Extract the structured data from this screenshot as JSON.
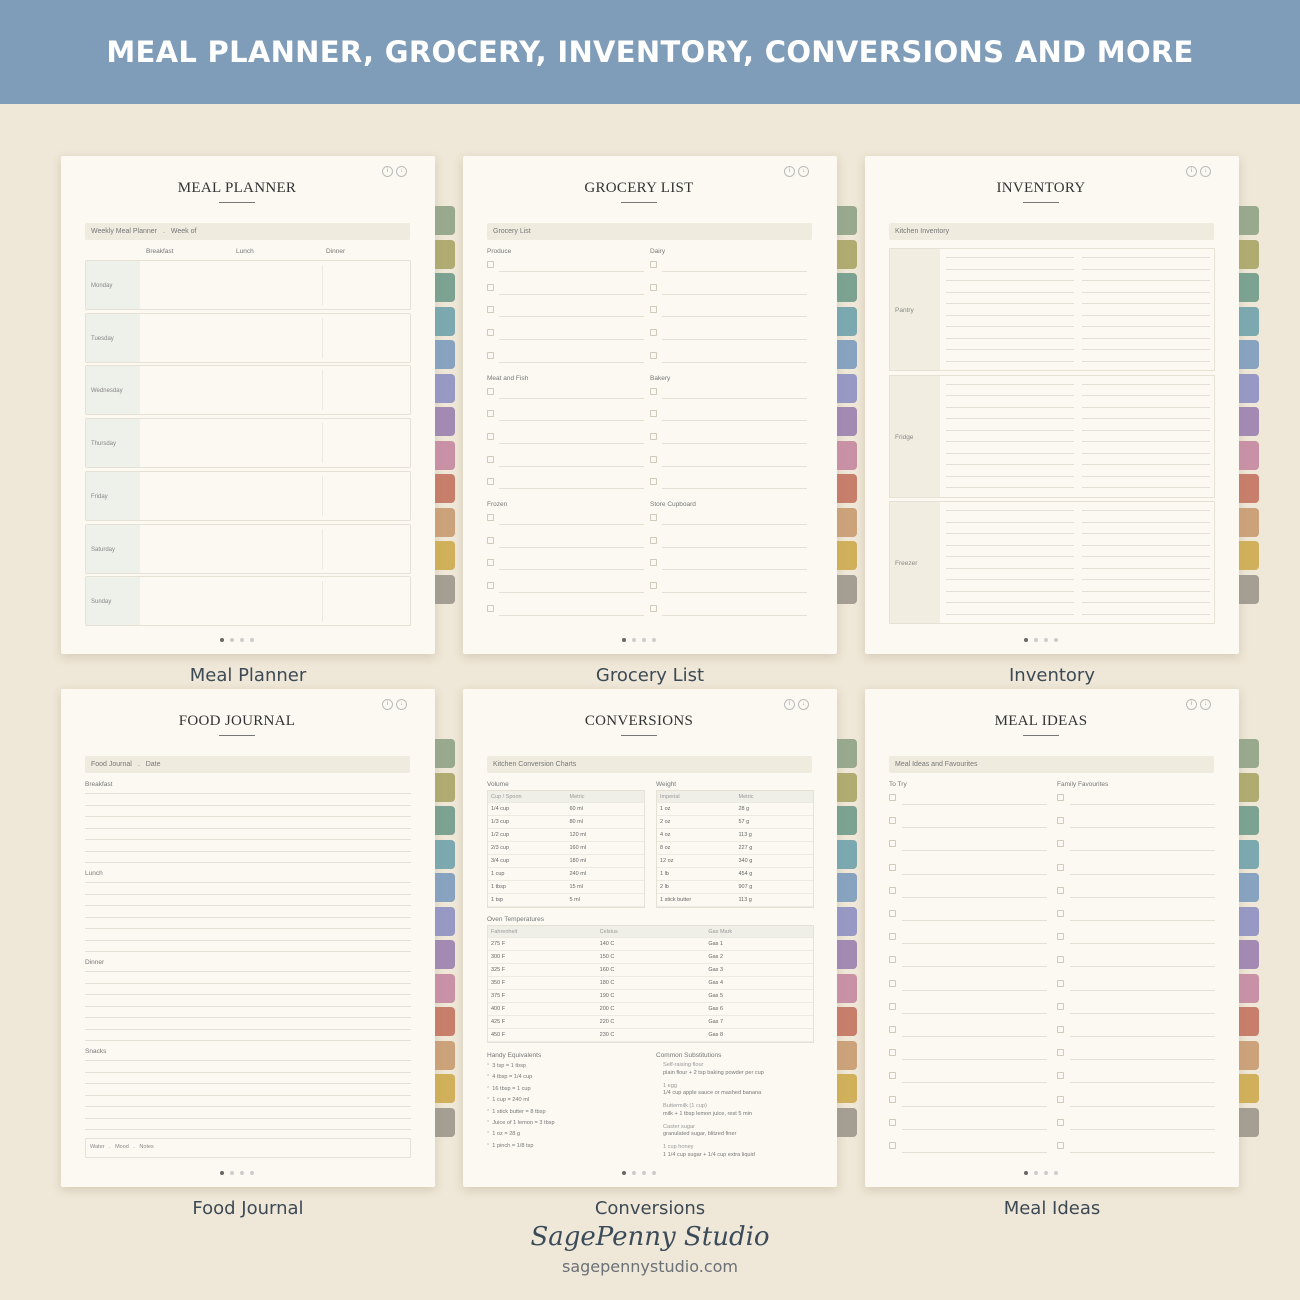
{
  "banner": {
    "title": "MEAL PLANNER, GROCERY, INVENTORY, CONVERSIONS AND MORE"
  },
  "tab_colors": [
    "#8ea285",
    "#a7a466",
    "#6f9a8a",
    "#6fa1ab",
    "#7b9bbd",
    "#8d90c2",
    "#9a7fae",
    "#c487a0",
    "#c2725e",
    "#c79a70",
    "#ccaa4c",
    "#9b968c"
  ],
  "header_icons": [
    "info-icon",
    "download-icon"
  ],
  "cards": {
    "meal_planner": {
      "title": "MEAL PLANNER",
      "caption": "Meal Planner",
      "bar": {
        "label": "Weekly Meal Planner",
        "sep": ".",
        "week": "Week of"
      },
      "columns": [
        "Breakfast",
        "Lunch",
        "Dinner"
      ],
      "days": [
        "Monday",
        "Tuesday",
        "Wednesday",
        "Thursday",
        "Friday",
        "Saturday",
        "Sunday"
      ]
    },
    "grocery": {
      "title": "GROCERY LIST",
      "caption": "Grocery List",
      "bar": "Grocery List",
      "sections": [
        [
          "Produce",
          "Dairy"
        ],
        [
          "Meat and Fish",
          "Bakery"
        ],
        [
          "Frozen",
          "Store Cupboard"
        ]
      ]
    },
    "inventory": {
      "title": "INVENTORY",
      "caption": "Inventory",
      "bar": "Kitchen Inventory",
      "sections": [
        "Pantry",
        "Fridge",
        "Freezer"
      ]
    },
    "food_journal": {
      "title": "FOOD JOURNAL",
      "caption": "Food Journal",
      "bar": {
        "label": "Food Journal",
        "sep": ".",
        "date": "Date"
      },
      "sections": [
        "Breakfast",
        "Lunch",
        "Dinner",
        "Snacks"
      ],
      "footer": {
        "water": "Water",
        "mood": "Mood",
        "notes": "Notes",
        "sep": "."
      }
    },
    "conversions": {
      "title": "CONVERSIONS",
      "caption": "Conversions",
      "bar": "Kitchen Conversion Charts",
      "volume": {
        "label": "Volume",
        "headers": [
          "Cup / Spoon",
          "Metric"
        ],
        "rows": [
          [
            "1/4 cup",
            "60 ml"
          ],
          [
            "1/3 cup",
            "80 ml"
          ],
          [
            "1/2 cup",
            "120 ml"
          ],
          [
            "2/3 cup",
            "160 ml"
          ],
          [
            "3/4 cup",
            "180 ml"
          ],
          [
            "1 cup",
            "240 ml"
          ],
          [
            "1 tbsp",
            "15 ml"
          ],
          [
            "1 tsp",
            "5 ml"
          ]
        ]
      },
      "weight": {
        "label": "Weight",
        "headers": [
          "Imperial",
          "Metric"
        ],
        "rows": [
          [
            "1 oz",
            "28 g"
          ],
          [
            "2 oz",
            "57 g"
          ],
          [
            "4 oz",
            "113 g"
          ],
          [
            "8 oz",
            "227 g"
          ],
          [
            "12 oz",
            "340 g"
          ],
          [
            "1 lb",
            "454 g"
          ],
          [
            "2 lb",
            "907 g"
          ],
          [
            "1 stick butter",
            "113 g"
          ]
        ]
      },
      "oven": {
        "label": "Oven Temperatures",
        "headers": [
          "Fahrenheit",
          "Celsius",
          "Gas Mark"
        ],
        "rows": [
          [
            "275 F",
            "140 C",
            "Gas 1"
          ],
          [
            "300 F",
            "150 C",
            "Gas 2"
          ],
          [
            "325 F",
            "160 C",
            "Gas 3"
          ],
          [
            "350 F",
            "180 C",
            "Gas 4"
          ],
          [
            "375 F",
            "190 C",
            "Gas 5"
          ],
          [
            "400 F",
            "200 C",
            "Gas 6"
          ],
          [
            "425 F",
            "220 C",
            "Gas 7"
          ],
          [
            "450 F",
            "230 C",
            "Gas 8"
          ]
        ]
      },
      "equivalents": {
        "label": "Handy Equivalents",
        "items": [
          "3 tsp = 1 tbsp",
          "4 tbsp = 1/4 cup",
          "16 tbsp = 1 cup",
          "1 cup = 240 ml",
          "1 stick butter = 8 tbsp",
          "Juice of 1 lemon = 3 tbsp",
          "1 oz = 28 g",
          "1 pinch = 1/8 tsp"
        ]
      },
      "substitutions": {
        "label": "Common Substitutions",
        "items": [
          [
            "Self-raising flour",
            "plain flour + 2 tsp baking powder per cup"
          ],
          [
            "1 egg",
            "1/4 cup apple sauce or mashed banana"
          ],
          [
            "Buttermilk (1 cup)",
            "milk + 1 tbsp lemon juice, rest 5 min"
          ],
          [
            "Caster sugar",
            "granulated sugar, blitzed finer"
          ],
          [
            "1 cup honey",
            "1 1/4 cup sugar + 1/4 cup extra liquid"
          ]
        ]
      }
    },
    "meal_ideas": {
      "title": "MEAL IDEAS",
      "caption": "Meal Ideas",
      "bar": "Meal Ideas and Favourites",
      "columns": [
        "To Try",
        "Family Favourites"
      ]
    }
  },
  "brand": {
    "name": "SagePenny Studio",
    "url": "sagepennystudio.com"
  }
}
